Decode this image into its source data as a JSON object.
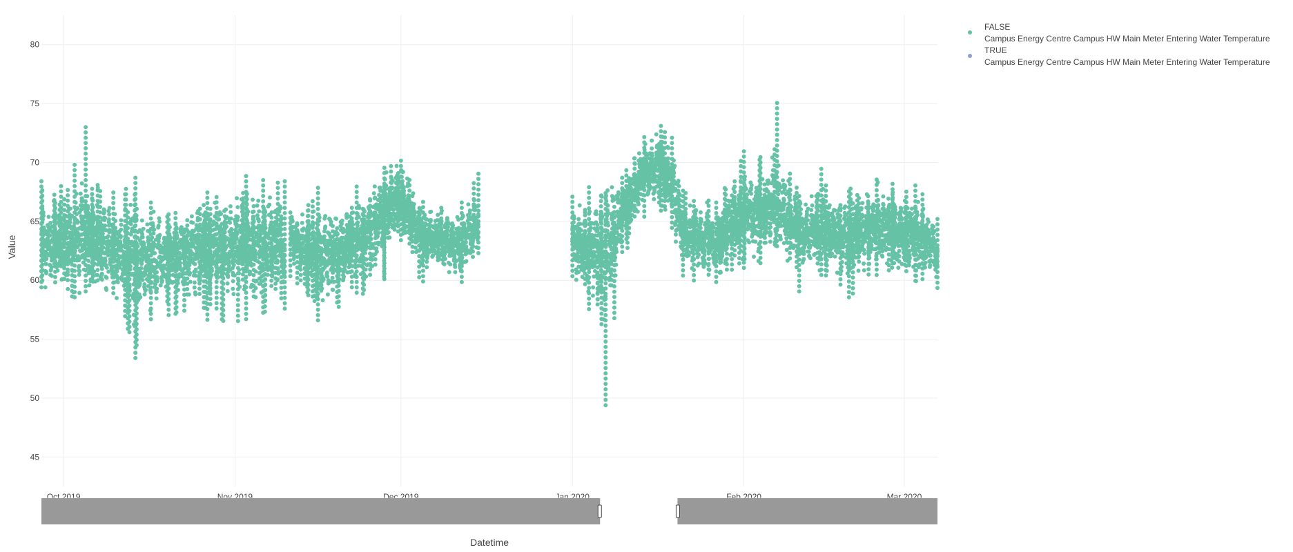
{
  "chart_data": {
    "type": "scatter",
    "xlabel": "Datetime",
    "ylabel": "Value",
    "xlim": [
      "2019-09-27",
      "2020-03-07"
    ],
    "ylim": [
      42.5,
      82.5
    ],
    "x_ticks": [
      {
        "label": "Oct 2019",
        "date": "2019-10-01"
      },
      {
        "label": "Nov 2019",
        "date": "2019-11-01"
      },
      {
        "label": "Dec 2019",
        "date": "2019-12-01"
      },
      {
        "label": "Jan 2020",
        "date": "2020-01-01"
      },
      {
        "label": "Feb 2020",
        "date": "2020-02-01"
      },
      {
        "label": "Mar 2020",
        "date": "2020-03-01"
      }
    ],
    "y_ticks": [
      45,
      50,
      55,
      60,
      65,
      70,
      75,
      80
    ],
    "grid": true,
    "legend_position": "top-right",
    "series": [
      {
        "name": "FALSE",
        "subname": "Campus Energy Centre Campus HW Main Meter Entering Water Temperature",
        "color": "#66c2a5",
        "profile": [
          {
            "x": "2019-09-27",
            "center": 63.0,
            "low": 59.0,
            "high": 68.5
          },
          {
            "x": "2019-10-03",
            "center": 63.5,
            "low": 58.5,
            "high": 70.0
          },
          {
            "x": "2019-10-05",
            "center": 64.0,
            "low": 59.0,
            "high": 73.2
          },
          {
            "x": "2019-10-10",
            "center": 62.5,
            "low": 58.5,
            "high": 67.5
          },
          {
            "x": "2019-10-14",
            "center": 61.5,
            "low": 53.2,
            "high": 69.0
          },
          {
            "x": "2019-10-20",
            "center": 62.0,
            "low": 57.0,
            "high": 66.0
          },
          {
            "x": "2019-10-27",
            "center": 62.5,
            "low": 56.5,
            "high": 67.5
          },
          {
            "x": "2019-11-03",
            "center": 63.0,
            "low": 56.5,
            "high": 69.0
          },
          {
            "x": "2019-11-10",
            "center": 63.0,
            "low": 57.5,
            "high": 68.5
          },
          {
            "x": "2019-11-11",
            "center": 63.5,
            "low": 60.0,
            "high": 66.0
          },
          {
            "x": "2019-11-16",
            "center": 62.0,
            "low": 56.5,
            "high": 68.0
          },
          {
            "x": "2019-11-23",
            "center": 63.0,
            "low": 58.5,
            "high": 68.0
          },
          {
            "x": "2019-11-28",
            "center": 65.5,
            "low": 60.0,
            "high": 70.0
          },
          {
            "x": "2019-12-01",
            "center": 67.0,
            "low": 63.0,
            "high": 70.5
          },
          {
            "x": "2019-12-05",
            "center": 63.5,
            "low": 59.5,
            "high": 67.0
          },
          {
            "x": "2019-12-12",
            "center": 63.0,
            "low": 59.5,
            "high": 67.0
          },
          {
            "x": "2019-12-15",
            "center": 65.0,
            "low": 62.0,
            "high": 69.5
          },
          {
            "x": "2020-01-01",
            "center": 63.5,
            "low": 60.0,
            "high": 67.5
          },
          {
            "x": "2020-01-04",
            "center": 62.5,
            "low": 57.5,
            "high": 68.0
          },
          {
            "x": "2020-01-07",
            "center": 62.0,
            "low": 49.0,
            "high": 67.5
          },
          {
            "x": "2020-01-10",
            "center": 66.0,
            "low": 62.0,
            "high": 69.0
          },
          {
            "x": "2020-01-14",
            "center": 69.0,
            "low": 65.0,
            "high": 72.5
          },
          {
            "x": "2020-01-17",
            "center": 69.5,
            "low": 65.5,
            "high": 73.3
          },
          {
            "x": "2020-01-19",
            "center": 68.5,
            "low": 64.0,
            "high": 72.5
          },
          {
            "x": "2020-01-21",
            "center": 64.0,
            "low": 60.0,
            "high": 68.0
          },
          {
            "x": "2020-01-27",
            "center": 63.0,
            "low": 59.5,
            "high": 67.0
          },
          {
            "x": "2020-02-01",
            "center": 66.0,
            "low": 61.0,
            "high": 71.0
          },
          {
            "x": "2020-02-04",
            "center": 65.5,
            "low": 61.0,
            "high": 70.5
          },
          {
            "x": "2020-02-07",
            "center": 66.5,
            "low": 62.5,
            "high": 75.2
          },
          {
            "x": "2020-02-11",
            "center": 64.0,
            "low": 59.0,
            "high": 67.5
          },
          {
            "x": "2020-02-15",
            "center": 64.5,
            "low": 60.0,
            "high": 69.5
          },
          {
            "x": "2020-02-20",
            "center": 63.5,
            "low": 58.5,
            "high": 68.0
          },
          {
            "x": "2020-02-25",
            "center": 64.5,
            "low": 60.0,
            "high": 69.0
          },
          {
            "x": "2020-03-03",
            "center": 64.0,
            "low": 59.5,
            "high": 68.5
          },
          {
            "x": "2020-03-07",
            "center": 62.5,
            "low": 59.0,
            "high": 65.5
          }
        ],
        "gaps": [
          [
            "2019-11-10",
            "2019-11-11"
          ],
          [
            "2019-12-15",
            "2020-01-01"
          ]
        ]
      },
      {
        "name": "TRUE",
        "subname": "Campus Energy Centre Campus HW Main Meter Entering Water Temperature",
        "color": "#8da0cb",
        "profile": []
      }
    ]
  },
  "rangeslider": {
    "window": [
      "2020-01-06",
      "2020-01-20"
    ]
  }
}
